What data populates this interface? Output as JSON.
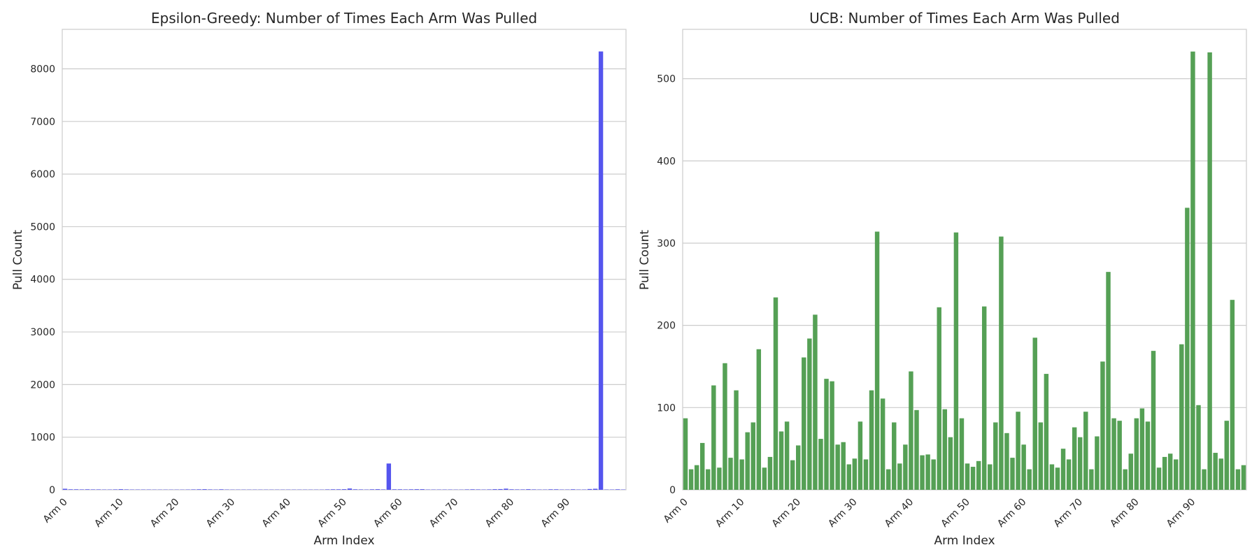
{
  "figure": {
    "left_title": "Epsilon-Greedy: Number of Times Each Arm Was Pulled",
    "right_title": "UCB: Number of Times Each Arm Was Pulled"
  },
  "chart_data": [
    {
      "type": "bar",
      "title": "Epsilon-Greedy: Number of Times Each Arm Was Pulled",
      "xlabel": "Arm Index",
      "ylabel": "Pull Count",
      "color": "#5555ee",
      "xtick_labels": [
        "Arm 0",
        "Arm 10",
        "Arm 20",
        "Arm 30",
        "Arm 40",
        "Arm 50",
        "Arm 60",
        "Arm 70",
        "Arm 80",
        "Arm 90"
      ],
      "ylim": [
        0,
        8750
      ],
      "yticks": [
        0,
        1000,
        2000,
        3000,
        4000,
        5000,
        6000,
        7000,
        8000
      ],
      "grid": true,
      "values": [
        20,
        10,
        10,
        8,
        10,
        8,
        8,
        6,
        6,
        8,
        12,
        8,
        6,
        6,
        6,
        6,
        5,
        5,
        5,
        5,
        5,
        5,
        6,
        8,
        10,
        12,
        8,
        6,
        10,
        6,
        5,
        5,
        5,
        5,
        5,
        5,
        5,
        5,
        5,
        5,
        5,
        5,
        5,
        5,
        5,
        5,
        5,
        8,
        10,
        10,
        12,
        25,
        10,
        8,
        6,
        10,
        12,
        8,
        500,
        10,
        10,
        8,
        10,
        12,
        12,
        6,
        6,
        6,
        6,
        6,
        5,
        5,
        8,
        10,
        8,
        6,
        8,
        12,
        14,
        22,
        10,
        8,
        8,
        12,
        8,
        6,
        6,
        10,
        10,
        6,
        6,
        10,
        6,
        6,
        15,
        20,
        8330,
        6,
        6,
        10,
        6
      ]
    },
    {
      "type": "bar",
      "title": "UCB: Number of Times Each Arm Was Pulled",
      "xlabel": "Arm Index",
      "ylabel": "Pull Count",
      "color": "#55a055",
      "xtick_labels": [
        "Arm 0",
        "Arm 10",
        "Arm 20",
        "Arm 30",
        "Arm 40",
        "Arm 50",
        "Arm 60",
        "Arm 70",
        "Arm 80",
        "Arm 90"
      ],
      "ylim": [
        0,
        560
      ],
      "yticks": [
        0,
        100,
        200,
        300,
        400,
        500
      ],
      "grid": true,
      "values": [
        87,
        25,
        30,
        57,
        25,
        127,
        27,
        154,
        39,
        121,
        37,
        70,
        82,
        171,
        27,
        40,
        234,
        71,
        83,
        36,
        54,
        161,
        184,
        213,
        62,
        135,
        132,
        55,
        58,
        31,
        38,
        83,
        37,
        121,
        314,
        111,
        25,
        82,
        32,
        55,
        144,
        97,
        42,
        43,
        37,
        222,
        98,
        64,
        313,
        87,
        32,
        28,
        35,
        223,
        31,
        82,
        308,
        69,
        39,
        95,
        55,
        25,
        185,
        82,
        141,
        31,
        27,
        50,
        37,
        76,
        64,
        95,
        25,
        65,
        156,
        265,
        87,
        84,
        25,
        44,
        87,
        99,
        83,
        169,
        27,
        40,
        44,
        37,
        177,
        343,
        533,
        103,
        25,
        532,
        45,
        38,
        84,
        231,
        25,
        30
      ]
    }
  ]
}
